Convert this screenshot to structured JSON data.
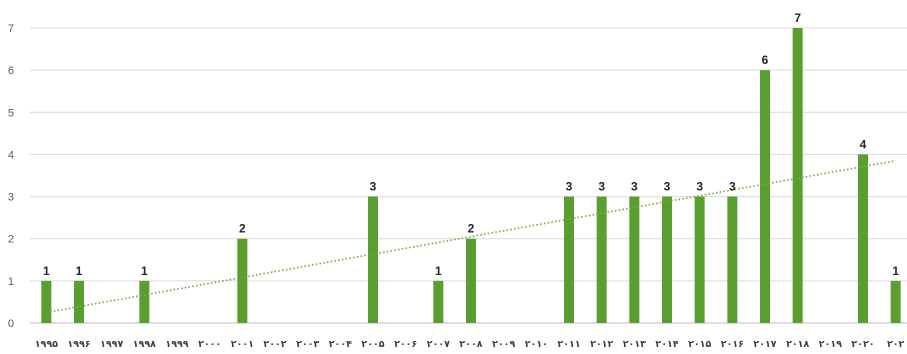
{
  "chart_data": {
    "type": "bar",
    "title": "",
    "xlabel": "",
    "ylabel": "",
    "ylim": [
      0,
      7
    ],
    "yticks": [
      "0",
      "1",
      "2",
      "3",
      "4",
      "5",
      "6",
      "7"
    ],
    "grid": true,
    "legend": "none",
    "categories": [
      "۱۹۹۵",
      "۱۹۹۶",
      "۱۹۹۷",
      "۱۹۹۸",
      "۱۹۹۹",
      "۲۰۰۰",
      "۲۰۰۱",
      "۲۰۰۲",
      "۲۰۰۳",
      "۲۰۰۴",
      "۲۰۰۵",
      "۲۰۰۶",
      "۲۰۰۷",
      "۲۰۰۸",
      "۲۰۰۹",
      "۲۰۱۰",
      "۲۰۱۱",
      "۲۰۱۲",
      "۲۰۱۳",
      "۲۰۱۴",
      "۲۰۱۵",
      "۲۰۱۶",
      "۲۰۱۷",
      "۲۰۱۸",
      "۲۰۱۹",
      "۲۰۲۰",
      "۲۰۲"
    ],
    "values": [
      1,
      1,
      null,
      1,
      null,
      null,
      2,
      null,
      null,
      null,
      3,
      null,
      1,
      2,
      null,
      null,
      3,
      3,
      3,
      3,
      3,
      3,
      6,
      7,
      null,
      4,
      1
    ],
    "data_labels": [
      "1",
      "1",
      "",
      "1",
      "",
      "",
      "2",
      "",
      "",
      "",
      "3",
      "",
      "1",
      "2",
      "",
      "",
      "3",
      "3",
      "3",
      "3",
      "3",
      "3",
      "6",
      "7",
      "",
      "4",
      "1"
    ],
    "trendline": {
      "type": "linear",
      "style": "dotted",
      "start": 0.25,
      "end": 3.85
    },
    "colors": {
      "bar": "#5a9e2f",
      "trend": "#70ad47",
      "grid": "#d9d9d9",
      "axis": "#bfbfbf"
    }
  }
}
